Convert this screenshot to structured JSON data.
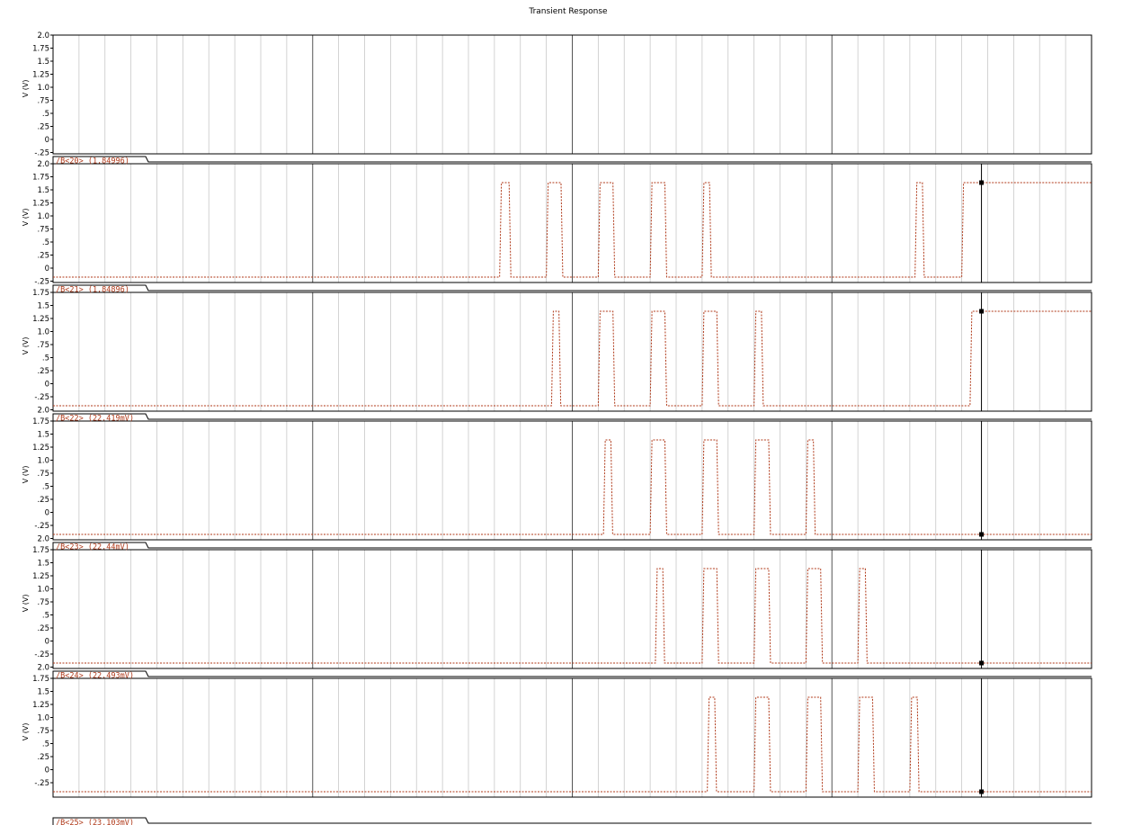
{
  "chart_data": {
    "type": "line",
    "title": "Transient Response",
    "xlabel": "",
    "ylabel": "V (V)",
    "colors": {
      "trace": "#b03a1a",
      "axis": "#000000",
      "grid_minor": "#c8c8c8",
      "grid_major": "#555555"
    },
    "cursor": {
      "x": 1.0
    },
    "panels": [
      {
        "id": "panel-1",
        "legend": "",
        "yticks": [
          "2.0",
          "1.75",
          "1.5",
          "1.25",
          "1.0",
          ".75",
          ".5",
          ".25",
          "0",
          "-.25"
        ],
        "has_trace": false
      },
      {
        "id": "panel-2",
        "legend": "/B<20> (1.84996)",
        "yticks": [
          "2.0",
          "1.75",
          "1.5",
          "1.25",
          "1.0",
          ".75",
          ".5",
          ".25",
          "0",
          "-.25"
        ],
        "has_trace": true,
        "low": -0.25,
        "high": 1.5,
        "pulses": [
          [
            0.43,
            0.44
          ],
          [
            0.475,
            0.49
          ],
          [
            0.525,
            0.54
          ],
          [
            0.575,
            0.59
          ],
          [
            0.625,
            0.633
          ],
          [
            0.83,
            0.838
          ],
          [
            0.875,
            1.0
          ]
        ],
        "cursor_marker": 1.5
      },
      {
        "id": "panel-3",
        "legend": "/B<21> (1.84896)",
        "yticks": [
          "1.75",
          "1.5",
          "1.25",
          "1.0",
          ".75",
          ".5",
          ".25",
          "0",
          "-.25",
          "2.0"
        ],
        "has_trace": true,
        "low": -0.25,
        "high": 1.5,
        "pulses": [
          [
            0.48,
            0.488
          ],
          [
            0.525,
            0.54
          ],
          [
            0.575,
            0.59
          ],
          [
            0.625,
            0.64
          ],
          [
            0.675,
            0.683
          ],
          [
            0.883,
            1.0
          ]
        ],
        "cursor_marker": 1.5
      },
      {
        "id": "panel-4",
        "legend": "/B<22> (22.419mV)",
        "yticks": [
          "1.75",
          "1.5",
          "1.25",
          "1.0",
          ".75",
          ".5",
          ".25",
          "0",
          "-.25",
          "2.0"
        ],
        "has_trace": true,
        "low": -0.25,
        "high": 1.5,
        "pulses": [
          [
            0.53,
            0.538
          ],
          [
            0.575,
            0.59
          ],
          [
            0.625,
            0.64
          ],
          [
            0.675,
            0.69
          ],
          [
            0.725,
            0.733
          ]
        ],
        "cursor_marker": -0.25
      },
      {
        "id": "panel-5",
        "legend": "/B<23> (22.44mV)",
        "yticks": [
          "1.75",
          "1.5",
          "1.25",
          "1.0",
          ".75",
          ".5",
          ".25",
          "0",
          "-.25",
          "2.0"
        ],
        "has_trace": true,
        "low": -0.25,
        "high": 1.5,
        "pulses": [
          [
            0.58,
            0.588
          ],
          [
            0.625,
            0.64
          ],
          [
            0.675,
            0.69
          ],
          [
            0.725,
            0.74
          ],
          [
            0.775,
            0.783
          ]
        ],
        "cursor_marker": -0.25
      },
      {
        "id": "panel-6",
        "legend": "/B<24> (22.493mV)",
        "yticks": [
          "1.75",
          "1.5",
          "1.25",
          "1.0",
          ".75",
          ".5",
          ".25",
          "0",
          "-.25"
        ],
        "has_trace": true,
        "low": -0.25,
        "high": 1.5,
        "pulses": [
          [
            0.63,
            0.638
          ],
          [
            0.675,
            0.69
          ],
          [
            0.725,
            0.74
          ],
          [
            0.775,
            0.79
          ],
          [
            0.825,
            0.833
          ]
        ],
        "cursor_marker": -0.25
      }
    ],
    "footer_legend": "/B<25> (23.103mV)"
  }
}
